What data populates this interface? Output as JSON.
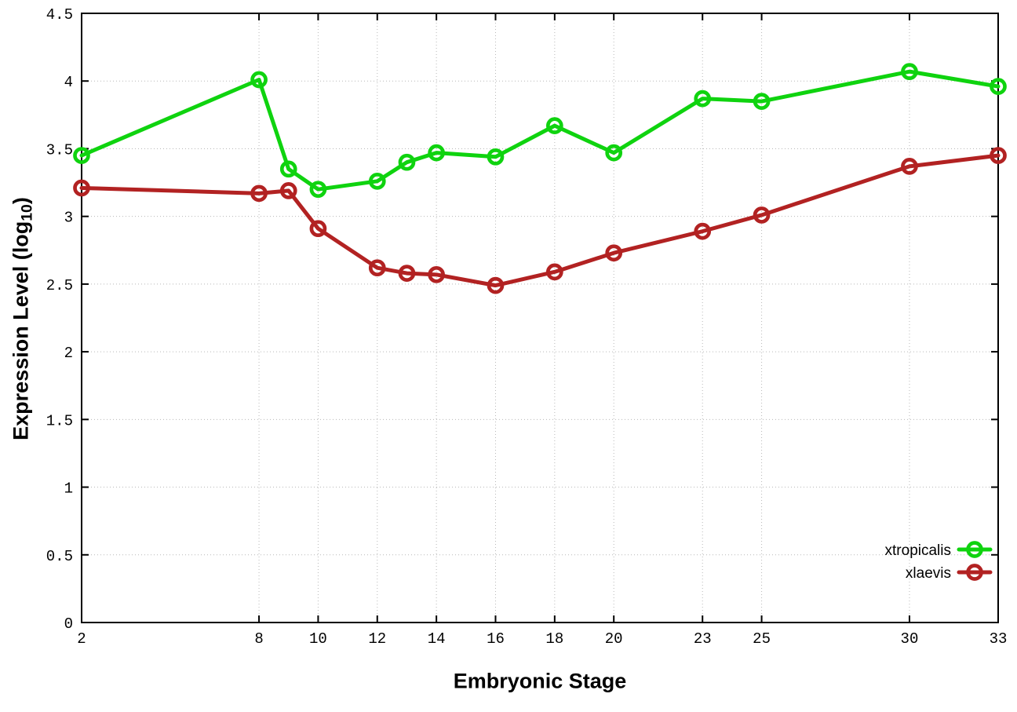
{
  "chart_data": {
    "type": "line",
    "title": "",
    "xlabel": "Embryonic Stage",
    "ylabel": "Expression Level (log10)",
    "ylabel_parts": {
      "prefix": "Expression Level (log",
      "sub": "10",
      "suffix": ")"
    },
    "x": [
      2,
      8,
      9,
      10,
      12,
      13,
      14,
      16,
      18,
      20,
      23,
      25,
      30,
      33
    ],
    "series": [
      {
        "name": "xtropicalis",
        "color": "#0fd30f",
        "values": [
          3.45,
          4.01,
          3.35,
          3.2,
          3.26,
          3.4,
          3.47,
          3.44,
          3.67,
          3.47,
          3.87,
          3.85,
          4.07,
          3.96
        ]
      },
      {
        "name": "xlaevis",
        "color": "#b22222",
        "values": [
          3.21,
          3.17,
          3.19,
          2.91,
          2.62,
          2.58,
          2.57,
          2.49,
          2.59,
          2.73,
          2.89,
          3.01,
          3.37,
          3.45
        ]
      }
    ],
    "xlim": [
      2,
      33
    ],
    "ylim": [
      0,
      4.5
    ],
    "xticks": [
      2,
      8,
      10,
      12,
      14,
      16,
      18,
      20,
      23,
      25,
      30,
      33
    ],
    "yticks": [
      0,
      0.5,
      1,
      1.5,
      2,
      2.5,
      3,
      3.5,
      4,
      4.5
    ],
    "grid": true,
    "legend_position": "bottom-right",
    "colors": {
      "background": "#ffffff",
      "grid": "#b8b8b8",
      "axis": "#000000",
      "text": "#000000"
    }
  }
}
